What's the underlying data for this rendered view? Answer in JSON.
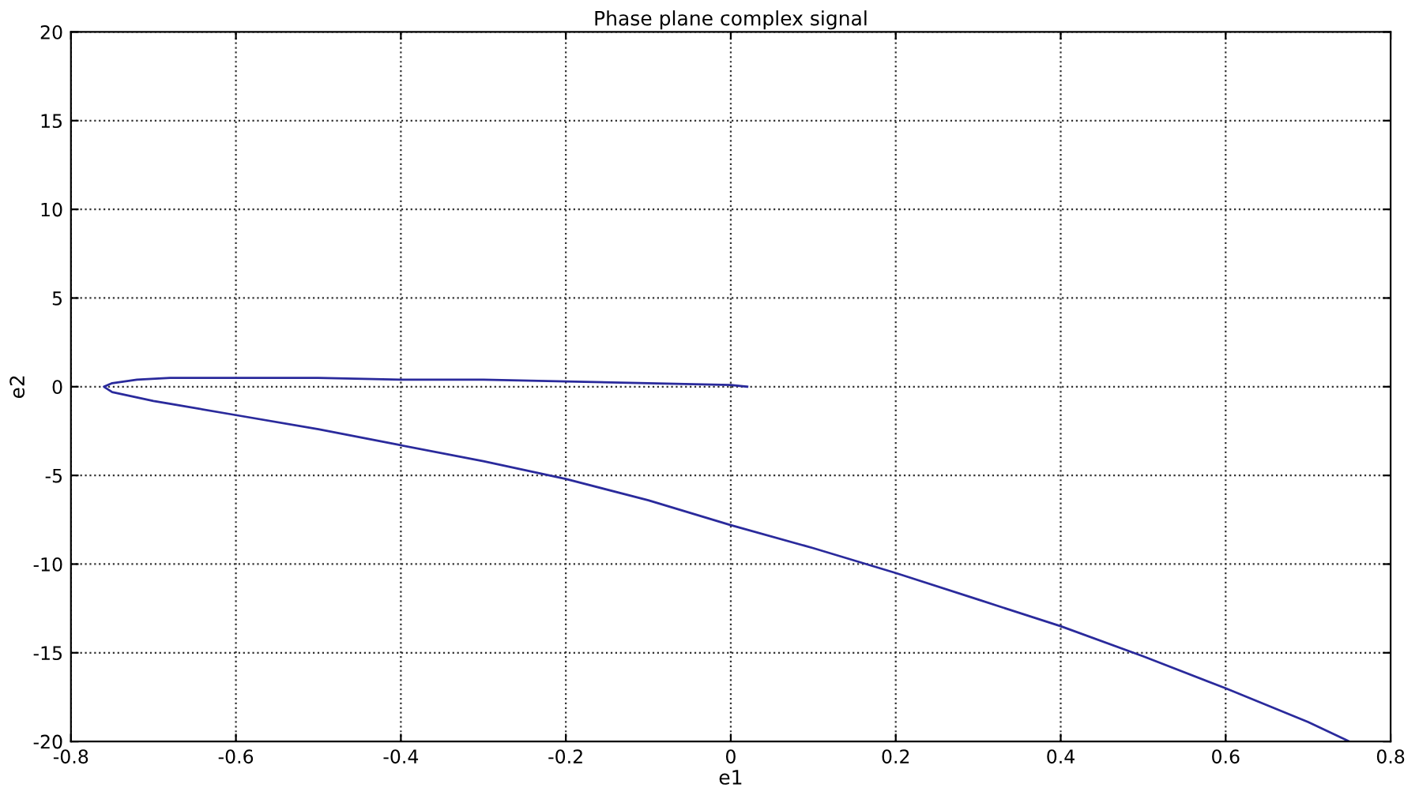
{
  "chart_data": {
    "type": "line",
    "title": "Phase plane complex signal",
    "xlabel": "e1",
    "ylabel": "e2",
    "series": [
      {
        "color": "#2a2a9c",
        "x": [
          0.02,
          0.0,
          -0.1,
          -0.2,
          -0.3,
          -0.4,
          -0.5,
          -0.6,
          -0.68,
          -0.72,
          -0.75,
          -0.76,
          -0.75,
          -0.7,
          -0.6,
          -0.5,
          -0.4,
          -0.3,
          -0.2,
          -0.1,
          0.0,
          0.1,
          0.2,
          0.3,
          0.4,
          0.5,
          0.6,
          0.7,
          0.75
        ],
        "values": [
          0.0,
          0.1,
          0.2,
          0.3,
          0.4,
          0.4,
          0.5,
          0.5,
          0.5,
          0.4,
          0.2,
          0.0,
          -0.3,
          -0.8,
          -1.6,
          -2.4,
          -3.3,
          -4.2,
          -5.2,
          -6.4,
          -7.8,
          -9.1,
          -10.5,
          -12.0,
          -13.5,
          -15.2,
          -17.0,
          -18.9,
          -20.0
        ]
      }
    ],
    "xlim": [
      -0.8,
      0.8
    ],
    "ylim": [
      -20,
      20
    ],
    "xticks": [
      -0.8,
      -0.6,
      -0.4,
      -0.2,
      0,
      0.2,
      0.4,
      0.6,
      0.8
    ],
    "yticks": [
      -20,
      -15,
      -10,
      -5,
      0,
      5,
      10,
      15,
      20
    ],
    "grid": true,
    "line_style": "solid"
  }
}
